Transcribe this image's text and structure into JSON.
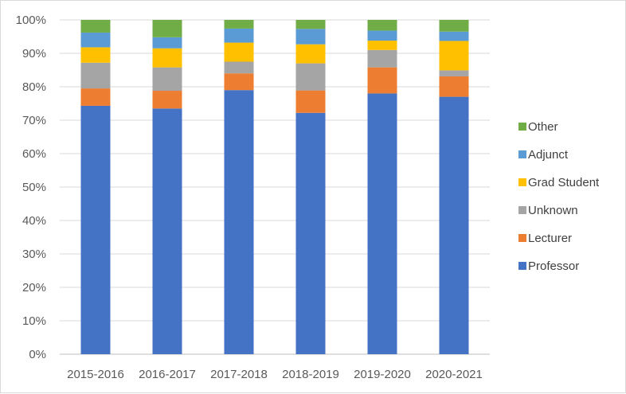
{
  "chart_data": {
    "type": "bar",
    "stacked": true,
    "normalized": true,
    "categories": [
      "2015-2016",
      "2016-2017",
      "2017-2018",
      "2018-2019",
      "2019-2020",
      "2020-2021"
    ],
    "series": [
      {
        "name": "Professor",
        "color": "#4472C4",
        "values": [
          74.3,
          73.5,
          79.0,
          72.2,
          78.0,
          77.0
        ]
      },
      {
        "name": "Lecturer",
        "color": "#ED7D31",
        "values": [
          5.2,
          5.3,
          5.0,
          6.7,
          7.8,
          6.1
        ]
      },
      {
        "name": "Unknown",
        "color": "#A5A5A5",
        "values": [
          7.7,
          7.0,
          3.5,
          8.1,
          5.2,
          1.8
        ]
      },
      {
        "name": "Grad Student",
        "color": "#FFC000",
        "values": [
          4.6,
          5.7,
          5.7,
          5.7,
          2.8,
          8.8
        ]
      },
      {
        "name": "Adjunct",
        "color": "#5B9BD5",
        "values": [
          4.4,
          3.3,
          4.2,
          4.6,
          3.0,
          2.8
        ]
      },
      {
        "name": "Other",
        "color": "#70AD47",
        "values": [
          3.8,
          5.2,
          2.6,
          2.7,
          3.2,
          3.5
        ]
      }
    ],
    "ylim": [
      0,
      100
    ],
    "yticks": [
      "0%",
      "10%",
      "20%",
      "30%",
      "40%",
      "50%",
      "60%",
      "70%",
      "80%",
      "90%",
      "100%"
    ],
    "grid": true,
    "legend_position": "right",
    "title": "",
    "xlabel": "",
    "ylabel": ""
  }
}
